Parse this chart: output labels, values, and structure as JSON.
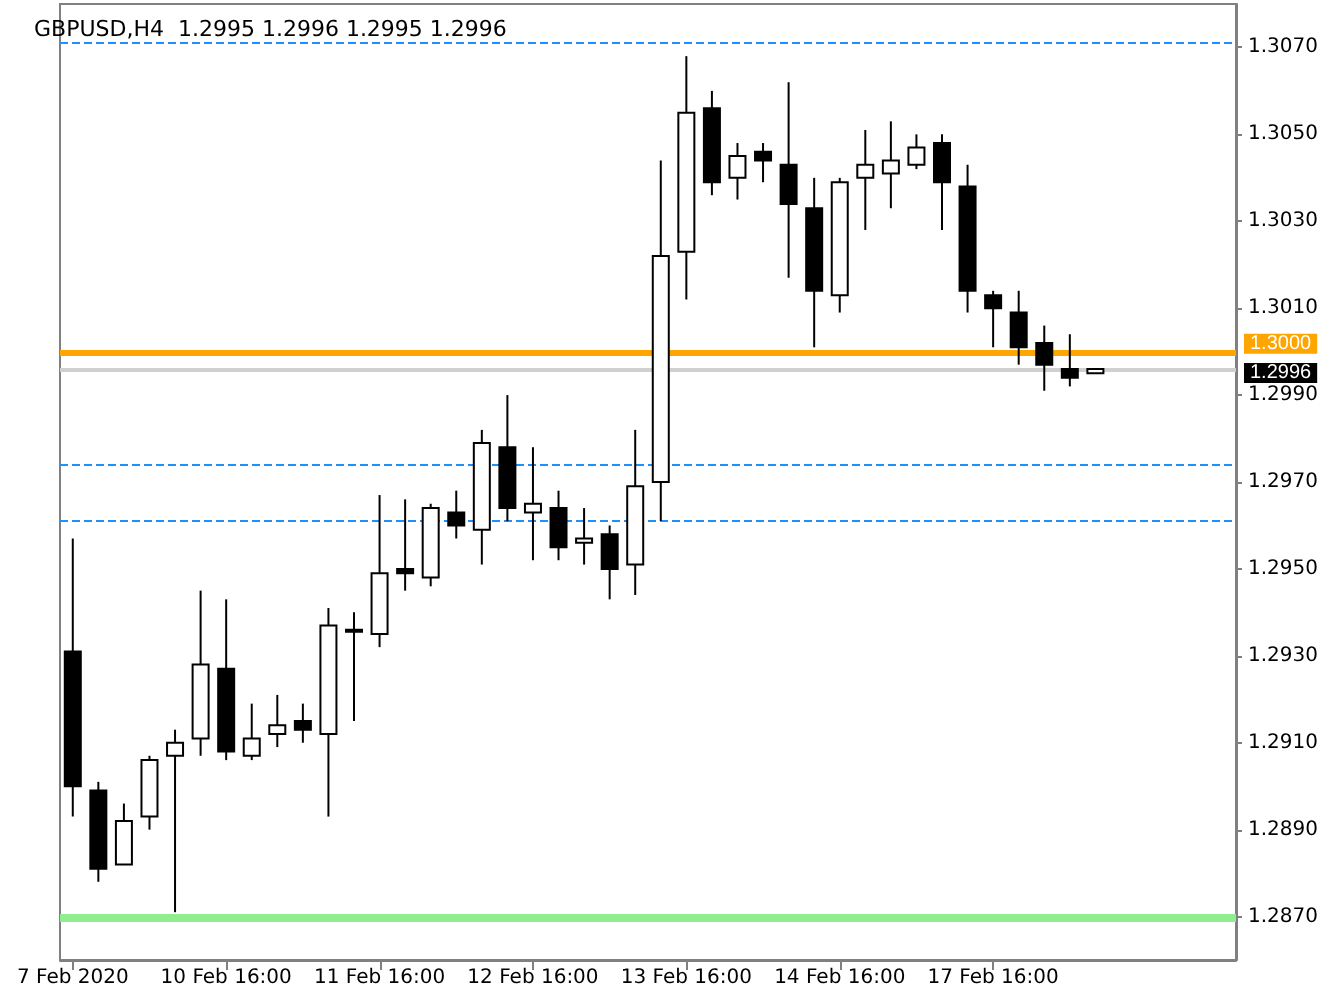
{
  "chart_data": {
    "type": "candlestick",
    "title": "GBPUSD,H4  1.2995 1.2996 1.2995 1.2996",
    "categories": [
      "7 Feb 2020",
      null,
      null,
      null,
      null,
      null,
      "10 Feb 16:00",
      null,
      null,
      null,
      null,
      null,
      "11 Feb 16:00",
      null,
      null,
      null,
      null,
      null,
      "12 Feb 16:00",
      null,
      null,
      null,
      null,
      null,
      "13 Feb 16:00",
      null,
      null,
      null,
      null,
      null,
      "14 Feb 16:00",
      null,
      null,
      null,
      null,
      null,
      "17 Feb 16:00",
      null,
      null,
      null,
      null,
      null,
      null,
      null,
      null,
      null
    ],
    "ohlc": [
      [
        1.2931,
        1.2957,
        1.2893,
        1.29
      ],
      [
        1.2899,
        1.2901,
        1.2878,
        1.2881
      ],
      [
        1.2882,
        1.2896,
        1.2882,
        1.2892
      ],
      [
        1.2893,
        1.2907,
        1.289,
        1.2906
      ],
      [
        1.2907,
        1.2913,
        1.2871,
        1.291
      ],
      [
        1.2911,
        1.2945,
        1.2907,
        1.2928
      ],
      [
        1.2927,
        1.2943,
        1.2906,
        1.2908
      ],
      [
        1.2907,
        1.2919,
        1.2906,
        1.2911
      ],
      [
        1.2912,
        1.2921,
        1.2909,
        1.2914
      ],
      [
        1.2915,
        1.2919,
        1.291,
        1.2913
      ],
      [
        1.2912,
        1.2941,
        1.2893,
        1.2937
      ],
      [
        1.2936,
        1.294,
        1.2915,
        1.2936
      ],
      [
        1.2935,
        1.2967,
        1.2932,
        1.2949
      ],
      [
        1.295,
        1.2966,
        1.2945,
        1.2949
      ],
      [
        1.2948,
        1.2965,
        1.2946,
        1.2964
      ],
      [
        1.2963,
        1.2968,
        1.2957,
        1.296
      ],
      [
        1.2959,
        1.2982,
        1.2951,
        1.2979
      ],
      [
        1.2978,
        1.299,
        1.2961,
        1.2964
      ],
      [
        1.2963,
        1.2978,
        1.2952,
        1.2965
      ],
      [
        1.2964,
        1.2968,
        1.2952,
        1.2955
      ],
      [
        1.2956,
        1.2964,
        1.2951,
        1.2957
      ],
      [
        1.2958,
        1.296,
        1.2943,
        1.295
      ],
      [
        1.2951,
        1.2982,
        1.2944,
        1.2969
      ],
      [
        1.297,
        1.3044,
        1.2961,
        1.3022
      ],
      [
        1.3023,
        1.3068,
        1.3012,
        1.3055
      ],
      [
        1.3056,
        1.306,
        1.3036,
        1.3039
      ],
      [
        1.304,
        1.3048,
        1.3035,
        1.3045
      ],
      [
        1.3046,
        1.3048,
        1.3039,
        1.3044
      ],
      [
        1.3043,
        1.3062,
        1.3017,
        1.3034
      ],
      [
        1.3033,
        1.304,
        1.3001,
        1.3014
      ],
      [
        1.3013,
        1.304,
        1.3009,
        1.3039
      ],
      [
        1.304,
        1.3051,
        1.3028,
        1.3043
      ],
      [
        1.3041,
        1.3053,
        1.3033,
        1.3044
      ],
      [
        1.3043,
        1.305,
        1.3042,
        1.3047
      ],
      [
        1.3048,
        1.305,
        1.3028,
        1.3039
      ],
      [
        1.3038,
        1.3043,
        1.3009,
        1.3014
      ],
      [
        1.3013,
        1.3014,
        1.3001,
        1.301
      ],
      [
        1.3009,
        1.3014,
        1.2997,
        1.3001
      ],
      [
        1.3002,
        1.3006,
        1.2991,
        1.2997
      ],
      [
        1.2996,
        1.3004,
        1.2992,
        1.2994
      ],
      [
        1.2995,
        1.2996,
        1.2995,
        1.2996
      ],
      null,
      null,
      null,
      null,
      null
    ],
    "ylim": [
      1.286,
      1.308
    ],
    "yticks": [
      {
        "value": 1.287,
        "label": "1.2870"
      },
      {
        "value": 1.289,
        "label": "1.2890"
      },
      {
        "value": 1.291,
        "label": "1.2910"
      },
      {
        "value": 1.293,
        "label": "1.2930"
      },
      {
        "value": 1.295,
        "label": "1.2950"
      },
      {
        "value": 1.297,
        "label": "1.2970"
      },
      {
        "value": 1.299,
        "label": "1.2990"
      },
      {
        "value": 1.301,
        "label": "1.3010"
      },
      {
        "value": 1.303,
        "label": "1.3030"
      },
      {
        "value": 1.305,
        "label": "1.3050"
      },
      {
        "value": 1.307,
        "label": "1.3070"
      }
    ],
    "ref_lines": [
      {
        "axis": "y",
        "value": 1.3,
        "label": "1.3000",
        "color": "#ffa500"
      },
      {
        "axis": "y",
        "value": 1.2996,
        "label": "1.2996",
        "color": "#d0d0d0"
      },
      {
        "axis": "y",
        "value": 1.287,
        "color": "#90ee90"
      },
      {
        "axis": "y",
        "value": 1.3071,
        "color": "#1e90ff",
        "line_style": "dashed"
      },
      {
        "axis": "y",
        "value": 1.2974,
        "color": "#1e90ff",
        "line_style": "dashed"
      },
      {
        "axis": "y",
        "value": 1.2961,
        "color": "#1e90ff",
        "line_style": "dashed"
      }
    ],
    "grid": false
  }
}
